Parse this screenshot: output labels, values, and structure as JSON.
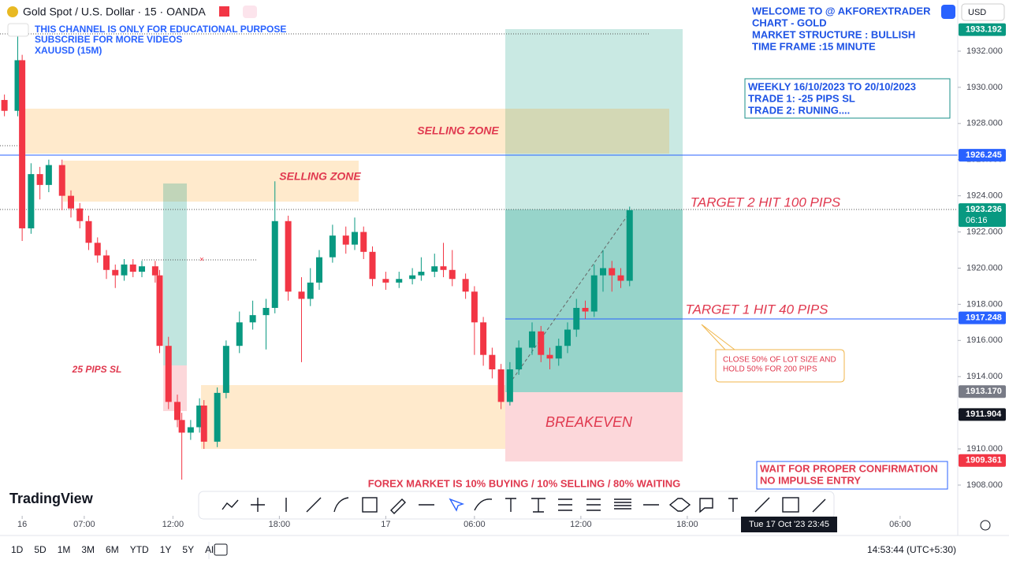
{
  "header": {
    "symbol": "Gold Spot / U.S. Dollar · 15 · OANDA",
    "currency": "USD"
  },
  "overlay_left": [
    "THIS CHANNEL IS ONLY FOR EDUCATIONAL PURPOSE",
    "SUBSCRIBE FOR MORE VIDEOS",
    "XAUUSD (15M)"
  ],
  "overlay_right": [
    "WELCOME TO @ AKFOREXTRADER",
    "CHART - GOLD",
    "MARKET STRUCTURE : BULLISH",
    "TIME FRAME :15 MINUTE"
  ],
  "weekly_box": [
    "WEEKLY 16/10/2023 TO 20/10/2023",
    "TRADE 1: -25 PIPS SL",
    "TRADE 2: RUNING...."
  ],
  "annotations": {
    "selling_zone_1": "SELLING ZONE",
    "selling_zone_2": "SELLING ZONE",
    "sl": "25 PIPS SL",
    "target2": "TARGET 2 HIT 100 PIPS",
    "target1": "TARGET 1 HIT 40 PIPS",
    "breakeven": "BREAKEVEN",
    "callout": [
      "CLOSE 50% OF LOT SIZE AND",
      "HOLD 50% FOR 200 PIPS"
    ],
    "market": "FOREX MARKET IS 10% BUYING / 10% SELLING / 80% WAITING",
    "wait": [
      "WAIT FOR PROPER CONFIRMATION",
      "NO IMPULSE ENTRY"
    ]
  },
  "chart_data": {
    "type": "candlestick",
    "x": [
      1,
      4,
      5,
      7,
      9,
      11,
      14,
      16,
      18,
      20,
      22,
      24,
      26,
      28,
      30,
      32,
      35,
      36,
      38,
      40,
      41,
      43,
      45,
      46,
      49,
      51,
      54,
      57,
      60,
      62,
      65,
      68,
      70,
      72,
      75,
      78,
      80,
      82,
      84,
      87,
      90,
      93,
      95,
      98,
      100,
      102,
      105,
      107,
      109,
      111,
      113,
      115,
      117,
      120,
      122,
      124,
      126,
      128,
      130,
      132,
      134,
      136,
      138,
      140,
      142
    ],
    "open": [
      1929.3,
      1928.7,
      1931.5,
      1922.2,
      1925.2,
      1924.6,
      1925.7,
      1924,
      1923.3,
      1922.6,
      1921.4,
      1920.7,
      1919.9,
      1919.6,
      1920.2,
      1919.8,
      1920.1,
      1919.6,
      1915.7,
      1912.6,
      1911.6,
      1910.9,
      1911.2,
      1912.4,
      1910.4,
      1913.1,
      1915.7,
      1917,
      1917.4,
      1917.8,
      1922.6,
      1918.7,
      1918.3,
      1919.2,
      1920.6,
      1921.8,
      1921.3,
      1922,
      1920.9,
      1919.4,
      1919.2,
      1919.4,
      1919.6,
      1919.8,
      1920.1,
      1919.9,
      1919.4,
      1918.7,
      1917,
      1915.2,
      1914.4,
      1912.6,
      1914.4,
      1915.6,
      1916.5,
      1915.2,
      1915,
      1915.7,
      1916.6,
      1917.8,
      1917.6,
      1919.6,
      1920,
      1919.6,
      1919.3
    ],
    "high": [
      1929.6,
      1933.2,
      1931.8,
      1925.8,
      1925.6,
      1926,
      1926,
      1924.3,
      1923.6,
      1922.9,
      1921.7,
      1921,
      1920.2,
      1920.5,
      1920.5,
      1920.4,
      1920.4,
      1919.9,
      1916.2,
      1913,
      1912,
      1911.6,
      1912.8,
      1912.7,
      1913.4,
      1916,
      1917.6,
      1918.2,
      1918.3,
      1924.8,
      1922.9,
      1919.5,
      1920,
      1921,
      1922.4,
      1922.3,
      1922.8,
      1922.3,
      1921.2,
      1919.8,
      1919.8,
      1920,
      1920.6,
      1920.8,
      1921.4,
      1921,
      1919.7,
      1919,
      1917.3,
      1915.6,
      1914.7,
      1914.8,
      1916,
      1917,
      1916.8,
      1915.6,
      1916.1,
      1917,
      1918.3,
      1918.2,
      1920.2,
      1921,
      1920.4,
      1920,
      1923.4
    ],
    "low": [
      1928.4,
      1928.4,
      1921.5,
      1921.9,
      1923.8,
      1924.2,
      1923.2,
      1922.8,
      1922.2,
      1921,
      1920.3,
      1919.4,
      1918.9,
      1919.3,
      1919.5,
      1919.5,
      1919.2,
      1915.3,
      1912.2,
      1911.2,
      1908.3,
      1910.5,
      1910.9,
      1910,
      1910.1,
      1912.8,
      1915.3,
      1916.6,
      1915.5,
      1917.5,
      1918.2,
      1914.8,
      1917.9,
      1918.8,
      1920.3,
      1920.8,
      1921,
      1920.5,
      1919,
      1918.8,
      1918.9,
      1919.1,
      1919.3,
      1919.5,
      1919.5,
      1919,
      1918.3,
      1915.2,
      1914.6,
      1913.9,
      1912.2,
      1912.4,
      1914.1,
      1915.2,
      1914.8,
      1914.4,
      1914.6,
      1915.3,
      1916.2,
      1917.2,
      1917.3,
      1918.7,
      1918.7,
      1918.9,
      1919
    ],
    "close": [
      1928.7,
      1931.5,
      1922.2,
      1925.2,
      1924.6,
      1925.7,
      1924,
      1923.3,
      1922.6,
      1921.4,
      1920.7,
      1919.9,
      1919.6,
      1920.2,
      1919.8,
      1920.1,
      1919.6,
      1915.7,
      1912.6,
      1911.6,
      1910.9,
      1911.2,
      1912.4,
      1910.4,
      1913.1,
      1915.7,
      1917,
      1917.4,
      1917.8,
      1922.6,
      1918.7,
      1918.3,
      1919.2,
      1920.6,
      1921.8,
      1921.3,
      1922,
      1920.9,
      1919.4,
      1919.2,
      1919.4,
      1919.6,
      1919.8,
      1920.1,
      1919.9,
      1919.4,
      1918.7,
      1917,
      1915.2,
      1914.4,
      1912.6,
      1914.4,
      1915.6,
      1916.5,
      1915.2,
      1915,
      1915.7,
      1916.6,
      1917.8,
      1917.6,
      1919.6,
      1920,
      1919.6,
      1919.3,
      1923.2
    ],
    "up_color": "#089981",
    "down_color": "#f23645",
    "xlim": [
      0,
      216
    ],
    "xticks": [
      {
        "value": 5,
        "label": "16"
      },
      {
        "value": 19,
        "label": "07:00"
      },
      {
        "value": 39,
        "label": "12:00"
      },
      {
        "value": 63,
        "label": "18:00"
      },
      {
        "value": 87,
        "label": "17"
      },
      {
        "value": 107,
        "label": "06:00"
      },
      {
        "value": 131,
        "label": "12:00"
      },
      {
        "value": 155,
        "label": "18:00"
      },
      {
        "value": 203,
        "label": "06:00"
      }
    ],
    "ylim": [
      1906.3,
      1934.83
    ],
    "yticks": [
      {
        "value": 1908,
        "label": "1908.000"
      },
      {
        "value": 1910,
        "label": "1910.000"
      },
      {
        "value": 1912,
        "label": "1912.000"
      },
      {
        "value": 1914,
        "label": "1914.000"
      },
      {
        "value": 1916,
        "label": "1916.000"
      },
      {
        "value": 1918,
        "label": "1918.000"
      },
      {
        "value": 1920,
        "label": "1920.000"
      },
      {
        "value": 1922,
        "label": "1922.000"
      },
      {
        "value": 1924,
        "label": "1924.000"
      },
      {
        "value": 1926,
        "label": "1926.000"
      },
      {
        "value": 1928,
        "label": "1928.000"
      },
      {
        "value": 1930,
        "label": "1930.000"
      },
      {
        "value": 1932,
        "label": "1932.000"
      }
    ],
    "price_labels": [
      {
        "value": 1933.192,
        "label": "1933.192",
        "color": "#089981"
      },
      {
        "value": 1926.245,
        "label": "1926.245",
        "color": "#2962ff"
      },
      {
        "value": 1923.236,
        "label": "1923.236",
        "color": "#089981"
      },
      {
        "value": 1917.248,
        "label": "1917.248",
        "color": "#2962ff"
      },
      {
        "value": 1913.17,
        "label": "1913.170",
        "color": "#787b86"
      },
      {
        "value": 1911.904,
        "label": "1911.904",
        "color": "#131722"
      },
      {
        "value": 1909.361,
        "label": "1909.361",
        "color": "#f23645"
      }
    ],
    "countdown": "06:16",
    "crosshair_time": "Tue 17 Oct '23  23:45"
  },
  "footer": {
    "brand": "TradingView",
    "ranges": [
      "1D",
      "5D",
      "1M",
      "3M",
      "6M",
      "YTD",
      "1Y",
      "5Y",
      "All"
    ],
    "clock": "14:53:44 (UTC+5:30)"
  }
}
